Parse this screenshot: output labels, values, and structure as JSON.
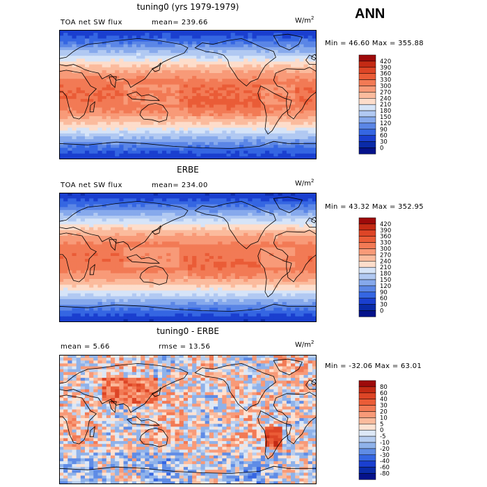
{
  "figure": {
    "season": "ANN"
  },
  "panels": [
    {
      "title": "tuning0 (yrs 1979-1979)",
      "variable": "TOA net SW flux",
      "stat1": "mean= 239.66",
      "stat2": "",
      "units": "W/m",
      "units_exp": "2",
      "minmax": "Min =  46.60 Max = 355.88",
      "field": "model",
      "legend_levels": [
        "420",
        "390",
        "360",
        "330",
        "300",
        "270",
        "240",
        "210",
        "180",
        "150",
        "120",
        "90",
        "60",
        "30",
        "0"
      ],
      "legend_colors": [
        "#9e0a0a",
        "#c42a14",
        "#dd4526",
        "#ea5c37",
        "#f27a55",
        "#f89a78",
        "#fbbb9d",
        "#fdddcb",
        "#d6e4f8",
        "#b1c9f2",
        "#86a9ec",
        "#5b86e6",
        "#3566e2",
        "#1a3fcf",
        "#0a2ba8",
        "#05128a"
      ]
    },
    {
      "title": "ERBE",
      "variable": "TOA net SW flux",
      "stat1": "mean= 234.00",
      "stat2": "",
      "units": "W/m",
      "units_exp": "2",
      "minmax": "Min =  43.32 Max = 352.95",
      "field": "obs",
      "legend_levels": [
        "420",
        "390",
        "360",
        "330",
        "300",
        "270",
        "240",
        "210",
        "180",
        "150",
        "120",
        "90",
        "60",
        "30",
        "0"
      ],
      "legend_colors": [
        "#9e0a0a",
        "#c42a14",
        "#dd4526",
        "#ea5c37",
        "#f27a55",
        "#f89a78",
        "#fbbb9d",
        "#fdddcb",
        "#d6e4f8",
        "#b1c9f2",
        "#86a9ec",
        "#5b86e6",
        "#3566e2",
        "#1a3fcf",
        "#0a2ba8",
        "#05128a"
      ]
    },
    {
      "title": "tuning0 - ERBE",
      "variable": "",
      "stat1": "mean =    5.66",
      "stat2": "rmse =  13.56",
      "units": "W/m",
      "units_exp": "2",
      "minmax": "Min = -32.06 Max =   63.01",
      "field": "diff",
      "legend_levels": [
        "80",
        "60",
        "40",
        "30",
        "20",
        "10",
        "5",
        "0",
        "-5",
        "-10",
        "-20",
        "-30",
        "-40",
        "-60",
        "-80"
      ],
      "legend_colors": [
        "#9e0a0a",
        "#c42a14",
        "#dd4526",
        "#ea5c37",
        "#f27a55",
        "#f89a78",
        "#fbbb9d",
        "#fde2d2",
        "#dde8f6",
        "#b6cdf0",
        "#8fb2ea",
        "#5f8ce6",
        "#3566e2",
        "#1a3fcf",
        "#0a2ba8",
        "#05128a"
      ]
    }
  ]
}
